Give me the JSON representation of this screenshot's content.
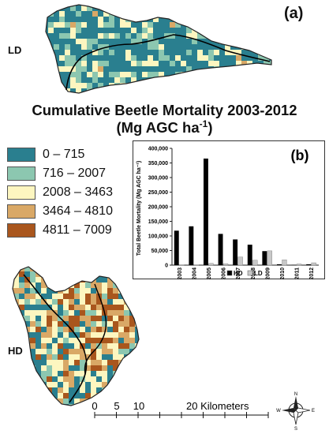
{
  "panel_a_label": "(a)",
  "panel_b_label": "(b)",
  "region_ld": "LD",
  "region_hd": "HD",
  "title_line1": "Cumulative Beetle Mortality 2003-2012",
  "title_line2_prefix": "(Mg AGC ha",
  "title_line2_sup": "-1",
  "title_line2_suffix": ")",
  "legend": [
    {
      "label": "0 – 715",
      "color": "#2a7f8f"
    },
    {
      "label": "716 – 2007",
      "color": "#8cc7b0"
    },
    {
      "label": "2008 – 3463",
      "color": "#fdf6c0"
    },
    {
      "label": "3464 – 4810",
      "color": "#d9a866"
    },
    {
      "label": "4811 – 7009",
      "color": "#a9561d"
    }
  ],
  "scalebar": {
    "ticks": [
      "0",
      "5",
      "10"
    ],
    "end_label": "20 Kilometers"
  },
  "compass": {
    "n": "N",
    "s": "S",
    "e": "E",
    "w": "W"
  },
  "chart_data": {
    "type": "bar",
    "title": "(b)",
    "ylabel": "Total Beetle Mortality (Mg AGC ha⁻¹)",
    "ylim": [
      0,
      400000
    ],
    "yticks": [
      "0",
      "50,000",
      "100,000",
      "150,000",
      "200,000",
      "250,000",
      "300,000",
      "350,000",
      "400,000"
    ],
    "categories": [
      "2003",
      "2004",
      "2005",
      "2006",
      "2007",
      "2008",
      "2009",
      "2010",
      "2011",
      "2012"
    ],
    "series": [
      {
        "name": "HD",
        "color": "#000000",
        "values": [
          118000,
          133000,
          365000,
          107000,
          88000,
          70000,
          48000,
          3000,
          1000,
          3000
        ]
      },
      {
        "name": "LD",
        "color": "#c8c8c8",
        "values": [
          1000,
          1000,
          6000,
          5000,
          28000,
          17000,
          49000,
          18000,
          4000,
          8000
        ]
      }
    ],
    "legend_position": "bottom"
  }
}
